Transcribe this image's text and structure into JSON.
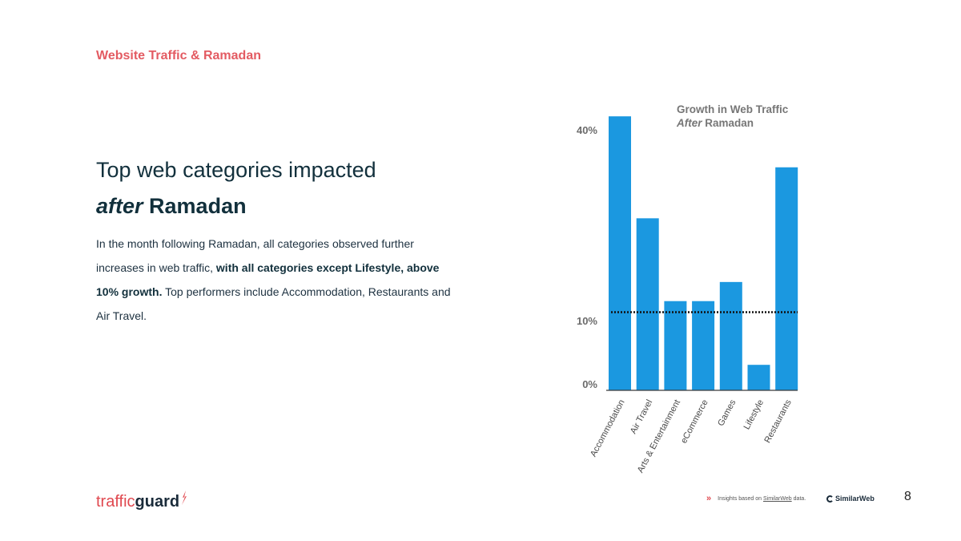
{
  "slide": {
    "section_title": "Website Traffic & Ramadan",
    "heading_line1": "Top web categories impacted",
    "heading_emph": "after",
    "heading_rest": " Ramadan",
    "body_plain1": "In the month following Ramadan, all categories observed further increases in web traffic, ",
    "body_bold": "with all categories except Lifestyle, above 10% growth.",
    "body_plain2": " Top performers include Accommodation, Restaurants and Air Travel.",
    "page_number": "8"
  },
  "footer": {
    "chevron": "»",
    "note_prefix": "Insights based on ",
    "note_link": "SimilarWeb",
    "note_suffix": " data.",
    "partner_logo": "SimilarWeb"
  },
  "logo": {
    "light": "traffic",
    "bold": "guard"
  },
  "colors": {
    "accent": "#e35b62",
    "bar": "#1b98e0",
    "heading": "#12303c"
  },
  "chart_data": {
    "type": "bar",
    "title_line1": "Growth in Web Traffic",
    "title_emph": "After",
    "title_rest": " Ramadan",
    "categories": [
      "Accommodation",
      "Air Travel",
      "Arts & Entertainment",
      "eCommerce",
      "Games",
      "Lifestyle",
      "Restaurants"
    ],
    "values": [
      43,
      27,
      14,
      14,
      17,
      4,
      35
    ],
    "ytick_labels": [
      "0%",
      "10%",
      "40%"
    ],
    "ytick_values": [
      0,
      10,
      40
    ],
    "reference_line": 10,
    "ylim": [
      0,
      45
    ]
  }
}
